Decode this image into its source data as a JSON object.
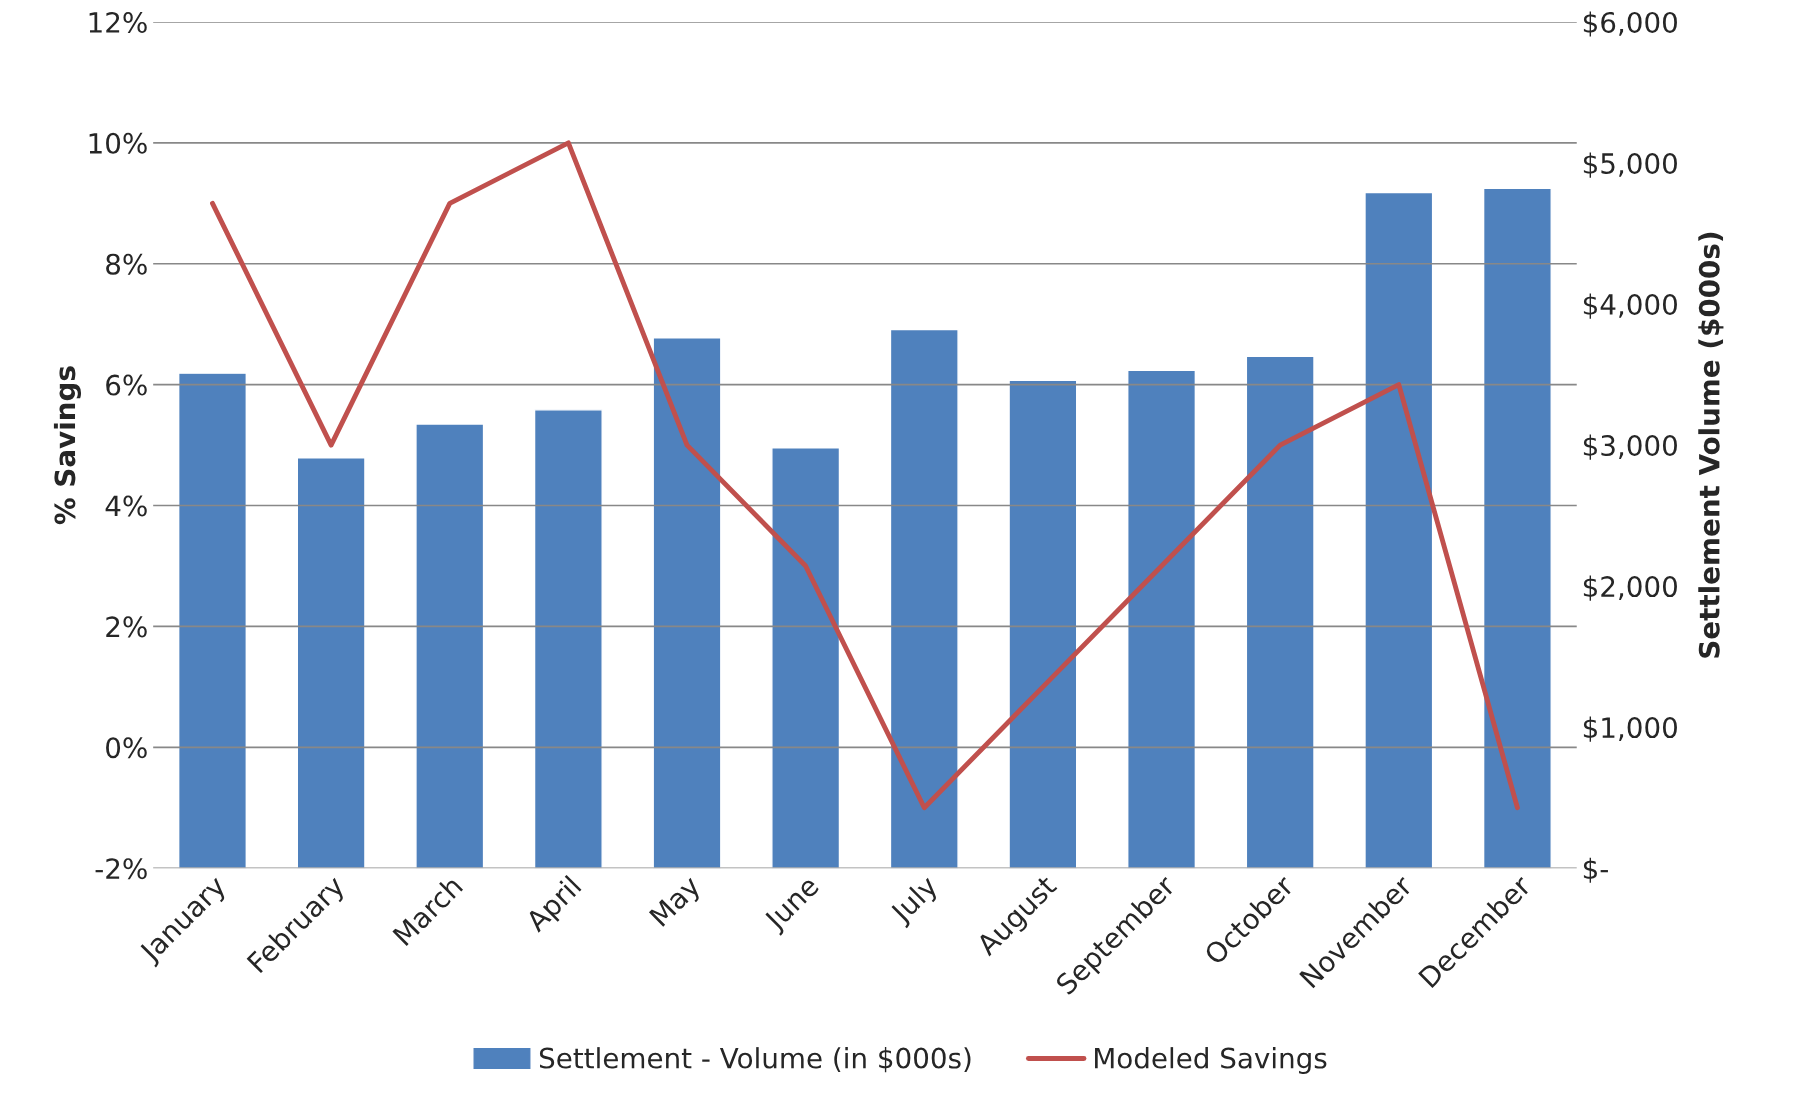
{
  "chart_data": {
    "type": "bar",
    "categories": [
      "January",
      "February",
      "March",
      "April",
      "May",
      "June",
      "July",
      "August",
      "September",
      "October",
      "November",
      "December"
    ],
    "series": [
      {
        "name": "Settlement - Volume (in $000s)",
        "axis": "y2",
        "color": "#4f81bd",
        "values": [
          3510,
          2910,
          3150,
          3250,
          3760,
          2980,
          3820,
          3460,
          3530,
          3630,
          4790,
          4820
        ]
      },
      {
        "name": "Modeled Savings",
        "type": "line",
        "axis": "y",
        "color": "#c0504d",
        "values": [
          9.0,
          5.0,
          9.0,
          10.0,
          5.0,
          3.0,
          -1.0,
          1.0,
          3.0,
          5.0,
          6.0,
          -1.0
        ]
      }
    ],
    "ylabel": "% Savings",
    "y2label": "Settlement Volume ($000s)",
    "ylim": [
      -2,
      12
    ],
    "yticks": [
      {
        "value": -2,
        "label": "-2%"
      },
      {
        "value": 0,
        "label": "0%"
      },
      {
        "value": 2,
        "label": "2%"
      },
      {
        "value": 4,
        "label": "4%"
      },
      {
        "value": 6,
        "label": "6%"
      },
      {
        "value": 8,
        "label": "8%"
      },
      {
        "value": 10,
        "label": "10%"
      },
      {
        "value": 12,
        "label": "12%"
      }
    ],
    "y2lim": [
      0,
      6000
    ],
    "y2ticks": [
      {
        "value": 0,
        "label": "$-"
      },
      {
        "value": 1000,
        "label": "$1,000"
      },
      {
        "value": 2000,
        "label": "$2,000"
      },
      {
        "value": 3000,
        "label": "$3,000"
      },
      {
        "value": 4000,
        "label": "$4,000"
      },
      {
        "value": 5000,
        "label": "$5,000"
      },
      {
        "value": 6000,
        "label": "$6,000"
      }
    ],
    "grid": "y",
    "legend": "bottom",
    "marker": "none",
    "line_style": "solid"
  }
}
